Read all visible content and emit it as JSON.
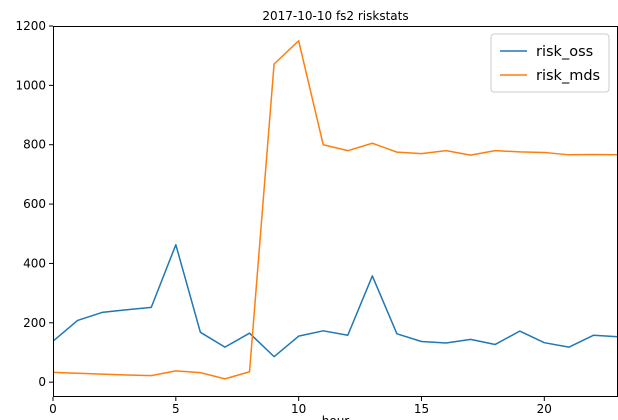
{
  "chart_data": {
    "type": "line",
    "title": "2017-10-10 fs2 riskstats",
    "xlabel": "hour",
    "ylabel": "",
    "xlim": [
      0,
      23
    ],
    "ylim": [
      -50,
      1200
    ],
    "xticks": [
      0,
      5,
      10,
      15,
      20
    ],
    "yticks": [
      0,
      200,
      400,
      600,
      800,
      1000,
      1200
    ],
    "grid": false,
    "legend_position": "top-right",
    "x": [
      0,
      1,
      2,
      3,
      4,
      5,
      6,
      7,
      8,
      9,
      10,
      11,
      12,
      13,
      14,
      15,
      16,
      17,
      18,
      19,
      20,
      21,
      22,
      23
    ],
    "series": [
      {
        "name": "risk_oss",
        "color": "#1f77b4",
        "values": [
          138,
          208,
          235,
          244,
          252,
          463,
          168,
          118,
          165,
          86,
          155,
          173,
          158,
          358,
          163,
          137,
          132,
          144,
          127,
          172,
          133,
          118,
          158,
          153
        ]
      },
      {
        "name": "risk_mds",
        "color": "#ff7f0e",
        "values": [
          33,
          30,
          27,
          24,
          22,
          38,
          32,
          11,
          35,
          1072,
          1150,
          800,
          780,
          805,
          775,
          770,
          780,
          765,
          780,
          776,
          774,
          766,
          767,
          766
        ]
      }
    ]
  }
}
